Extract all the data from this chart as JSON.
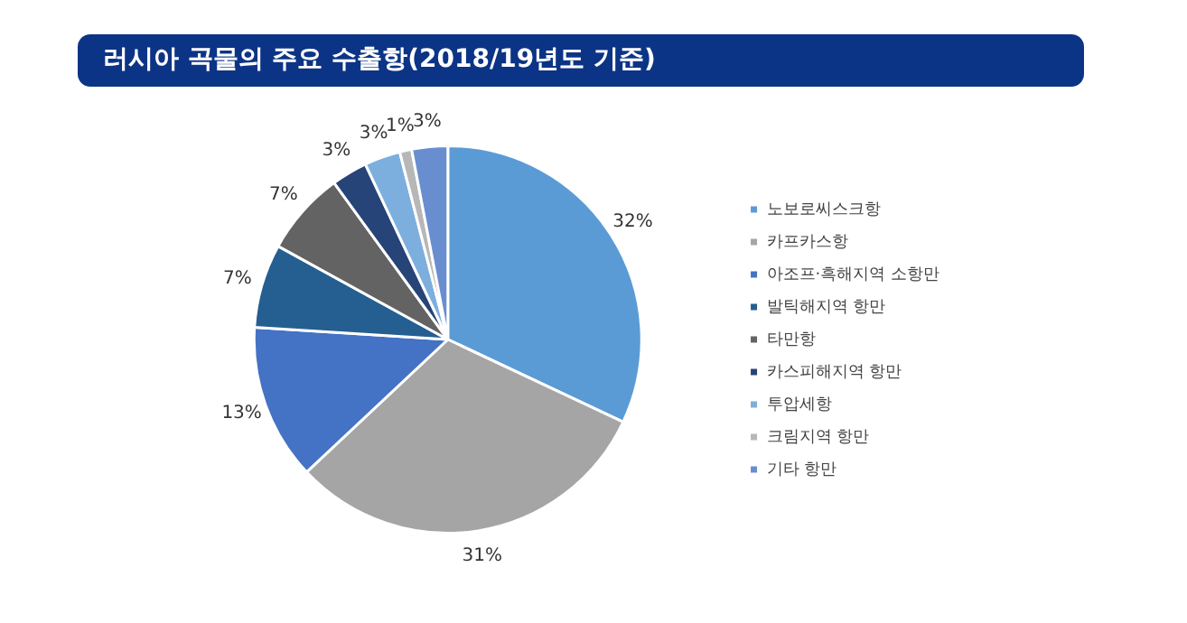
{
  "chart_data": {
    "type": "pie",
    "title": "러시아 곡물의 주요 수출항(2018/19년도 기준)",
    "categories": [
      "노보로씨스크항",
      "카프카스항",
      "아조프·흑해지역 소항만",
      "발틱해지역 항만",
      "타만항",
      "카스피해지역 항만",
      "투압세항",
      "크림지역 항만",
      "기타 항만"
    ],
    "values": [
      32,
      31,
      13,
      7,
      7,
      3,
      3,
      1,
      3
    ],
    "value_labels": [
      "32%",
      "31%",
      "13%",
      "7%",
      "7%",
      "3%",
      "3%",
      "1%",
      "3%"
    ],
    "colors": [
      "#5b9bd5",
      "#a5a5a5",
      "#4472c4",
      "#255e91",
      "#636363",
      "#264478",
      "#7cafdd",
      "#b7b7b7",
      "#698ed0"
    ],
    "legend": "right"
  }
}
